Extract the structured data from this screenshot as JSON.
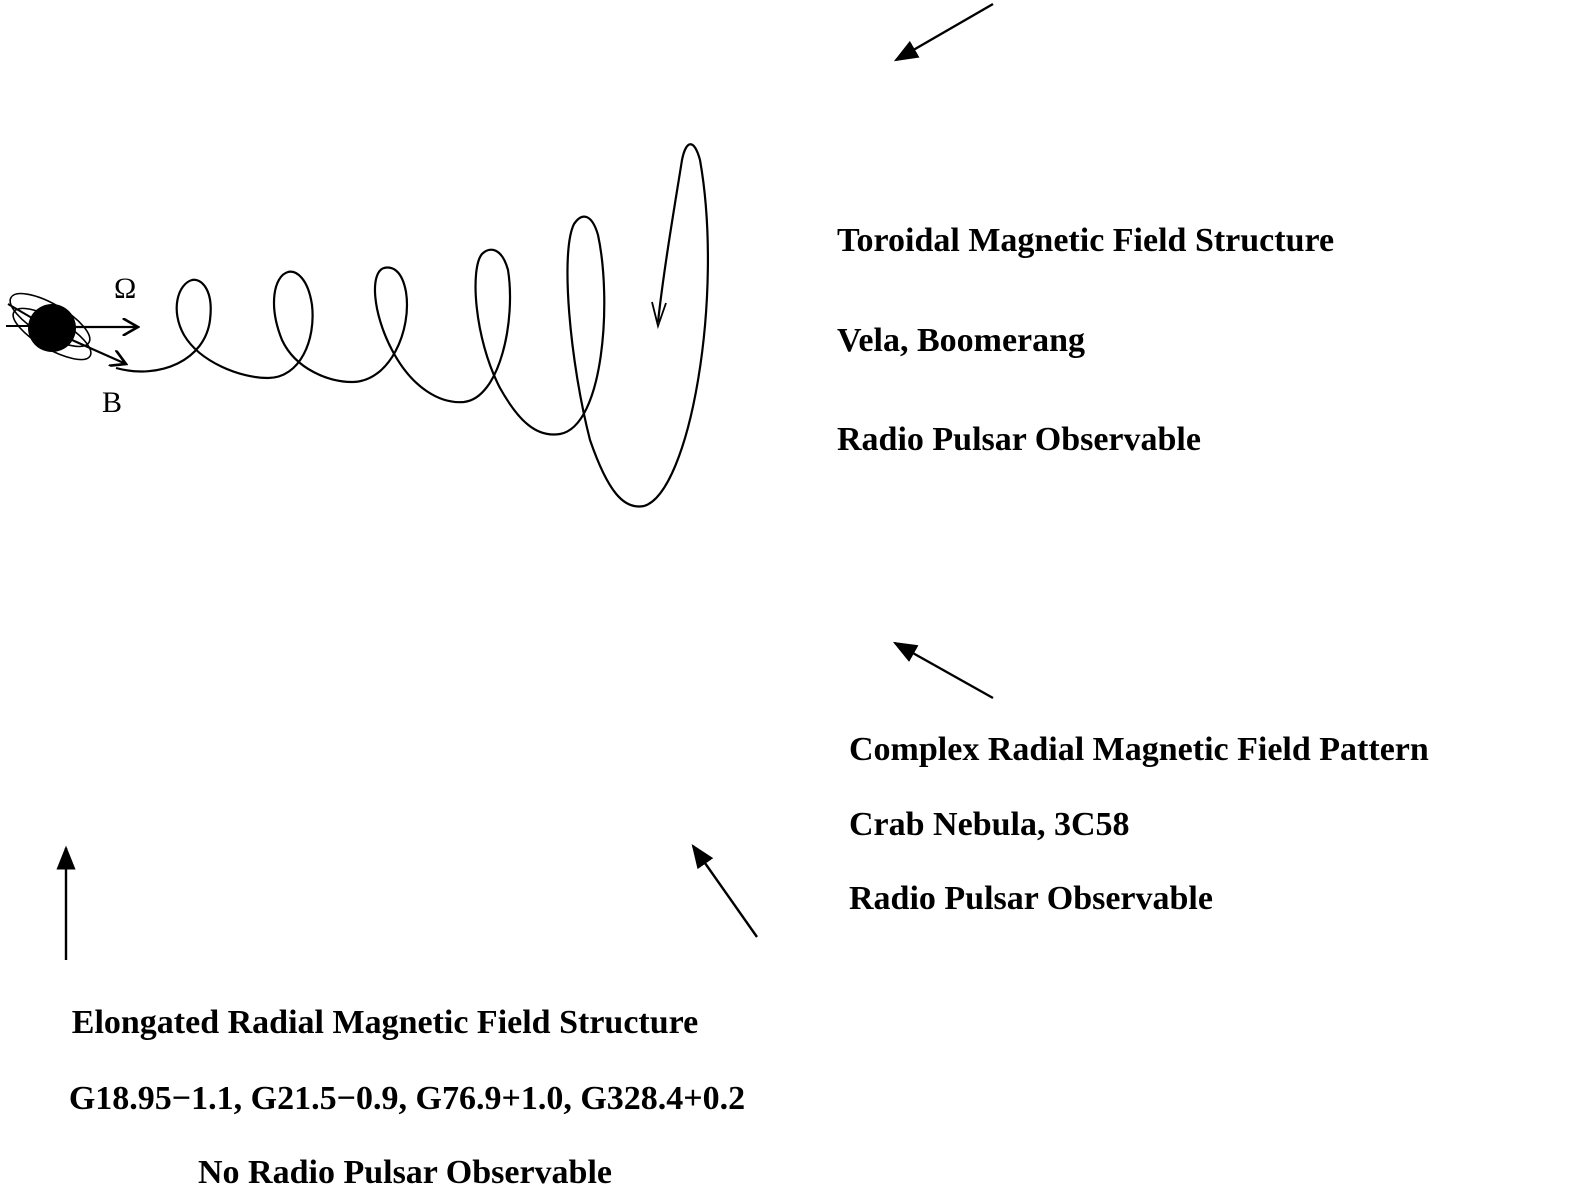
{
  "pulsar": {
    "omega_label": "Ω",
    "b_label": "B"
  },
  "toroidal": {
    "title": "Toroidal Magnetic Field Structure",
    "examples": "Vela, Boomerang",
    "pulsar_status": "Radio Pulsar Observable"
  },
  "complex_radial": {
    "title": "Complex Radial Magnetic Field Pattern",
    "examples": "Crab Nebula, 3C58",
    "pulsar_status": "Radio Pulsar Observable"
  },
  "elongated_radial": {
    "title": "Elongated Radial Magnetic Field Structure",
    "examples": "G18.95−1.1, G21.5−0.9, G76.9+1.0, G328.4+0.2",
    "pulsar_status": "No Radio Pulsar Observable"
  },
  "colors": {
    "ink": "#000000",
    "background": "#ffffff"
  }
}
